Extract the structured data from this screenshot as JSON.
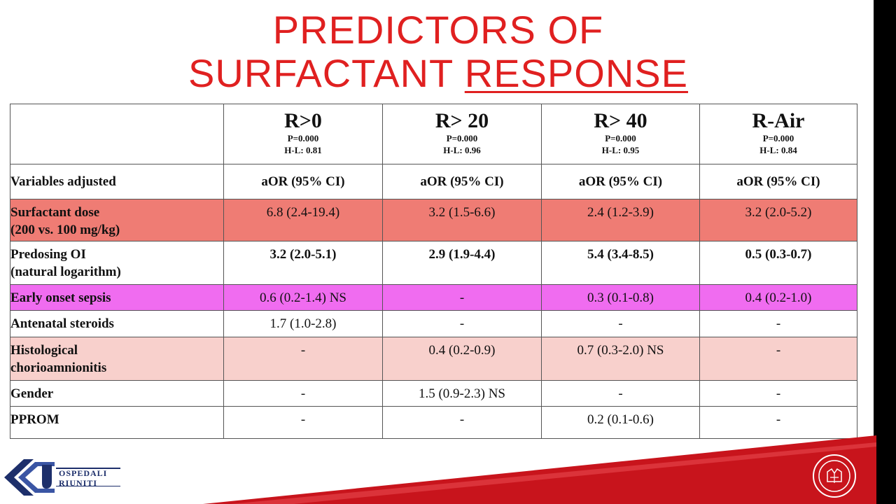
{
  "title": {
    "line1": "PREDICTORS OF",
    "line2_plain": "SURFACTANT ",
    "line2_underlined": "RESPONSE"
  },
  "table": {
    "columns": [
      {
        "title": "R>0",
        "p": "P=0.000",
        "hl": "H-L: 0.81"
      },
      {
        "title": "R> 20",
        "p": "P=0.000",
        "hl": "H-L: 0.96"
      },
      {
        "title": "R> 40",
        "p": "P=0.000",
        "hl": "H-L: 0.95"
      },
      {
        "title": "R-Air",
        "p": "P=0.000",
        "hl": "H-L: 0.84"
      }
    ],
    "adjusted_row": {
      "label": "Variables adjusted",
      "values": [
        "aOR (95% CI)",
        "aOR (95% CI)",
        "aOR (95% CI)",
        "aOR (95% CI)"
      ]
    },
    "rows": [
      {
        "label_1": "Surfactant dose",
        "label_2": "(200 vs. 100 mg/kg)",
        "values": [
          "6.8 (2.4-19.4)",
          "3.2 (1.5-6.6)",
          "2.4 (1.2-3.9)",
          "3.2 (2.0-5.2)"
        ],
        "color": "#ef7c74"
      },
      {
        "label_1": "Predosing OI",
        "label_2": "(natural logarithm)",
        "values": [
          "3.2 (2.0-5.1)",
          "2.9 (1.9-4.4)",
          "5.4 (3.4-8.5)",
          "0.5 (0.3-0.7)"
        ]
      },
      {
        "label_1": "Early onset sepsis",
        "label_2": "",
        "values": [
          "0.6 (0.2-1.4) NS",
          "-",
          "0.3 (0.1-0.8)",
          "0.4 (0.2-1.0)"
        ],
        "color": "#f06cf0"
      },
      {
        "label_1": "Antenatal steroids",
        "label_2": "",
        "values": [
          "1.7 (1.0-2.8)",
          "-",
          "-",
          "-"
        ]
      },
      {
        "label_1": "Histological",
        "label_2": "chorioamnionitis",
        "values": [
          "-",
          "0.4 (0.2-0.9)",
          "0.7 (0.3-2.0) NS",
          "-"
        ],
        "color": "#f8d0cc"
      },
      {
        "label_1": "Gender",
        "label_2": "",
        "values": [
          "-",
          "1.5 (0.9-2.3) NS",
          "-",
          "-"
        ]
      },
      {
        "label_1": "PPROM",
        "label_2": "",
        "values": [
          "-",
          "-",
          "0.2 (0.1-0.6)",
          "-"
        ]
      }
    ]
  },
  "logo_left": {
    "line1": "OSPEDALI",
    "line2": "RIUNITI"
  },
  "colors": {
    "title": "#e02020",
    "swoosh": "#c8141c"
  }
}
